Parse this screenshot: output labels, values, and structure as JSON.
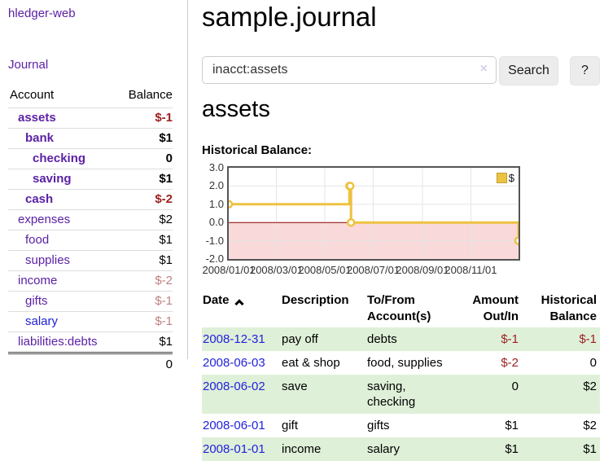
{
  "colors": {
    "link_purple": "#5c21a5",
    "link_blue": "#2121dd",
    "negative": "#9e1f1f",
    "negative_muted": "#c08181",
    "row_stripe_green": "#dff0d8",
    "chart_series_gold": "#edc240",
    "chart_negative_region": "#f9d9d9",
    "chart_zero_line": "#8b0000",
    "chart_grid": "#e6e6e6",
    "chart_border": "#545454"
  },
  "app": {
    "brand": "hledger-web",
    "nav_journal": "Journal"
  },
  "sidebar": {
    "header": {
      "account": "Account",
      "balance": "Balance"
    },
    "accounts": [
      {
        "name": "assets",
        "depth": 0,
        "balance": "$-1",
        "bold": true
      },
      {
        "name": "bank",
        "depth": 1,
        "balance": "$1",
        "bold": true
      },
      {
        "name": "checking",
        "depth": 2,
        "balance": "0",
        "bold": true
      },
      {
        "name": "saving",
        "depth": 2,
        "balance": "$1",
        "bold": true
      },
      {
        "name": "cash",
        "depth": 1,
        "balance": "$-2",
        "bold": true
      },
      {
        "name": "expenses",
        "depth": 0,
        "balance": "$2",
        "bold": false
      },
      {
        "name": "food",
        "depth": 1,
        "balance": "$1",
        "bold": false
      },
      {
        "name": "supplies",
        "depth": 1,
        "balance": "$1",
        "bold": false
      },
      {
        "name": "income",
        "depth": 0,
        "balance": "$-2",
        "bold": false
      },
      {
        "name": "gifts",
        "depth": 1,
        "balance": "$-1",
        "bold": false
      },
      {
        "name": "salary",
        "depth": 1,
        "balance": "$-1",
        "bold": false,
        "unvisited": true
      },
      {
        "name": "liabilities:debts",
        "depth": 0,
        "balance": "$1",
        "bold": false
      }
    ],
    "total": "0"
  },
  "main": {
    "title": "sample.journal",
    "search": {
      "value": "inacct:assets",
      "clear_icon": "×",
      "search_button": "Search",
      "help_button": "?"
    },
    "account_heading": "assets",
    "chart_title": "Historical Balance:"
  },
  "chart_data": {
    "type": "line",
    "step": true,
    "series": [
      {
        "name": "$",
        "color": "#edc240",
        "points": [
          [
            "2008-01-01",
            1
          ],
          [
            "2008-06-01",
            2
          ],
          [
            "2008-06-02",
            2
          ],
          [
            "2008-06-03",
            0
          ],
          [
            "2008-12-31",
            -1
          ]
        ]
      }
    ],
    "x_range": [
      "2008-01-01",
      "2008-12-31"
    ],
    "x_ticks": [
      "2008/01/01",
      "2008/03/01",
      "2008/05/01",
      "2008/07/01",
      "2008/09/01",
      "2008/11/01"
    ],
    "y_ticks": [
      3,
      2,
      1,
      0,
      -1,
      -2
    ],
    "ylim": [
      -2,
      3
    ],
    "grid": true,
    "legend_position": "top-right",
    "legend_entries": [
      "$"
    ],
    "negative_region_fill": "#f9d9d9",
    "zero_line_color": "#8b0000",
    "title": "",
    "xlabel": "",
    "ylabel": ""
  },
  "register": {
    "columns": [
      "Date",
      "Description",
      "To/From Account(s)",
      "Amount Out/In",
      "Historical Balance"
    ],
    "sort_column": "Date",
    "sort_direction": "ascending",
    "rows": [
      {
        "date": "2008-12-31",
        "description": "pay off",
        "accounts": "debts",
        "amount": "$-1",
        "balance": "$-1"
      },
      {
        "date": "2008-06-03",
        "description": "eat & shop",
        "accounts": "food, supplies",
        "amount": "$-2",
        "balance": "0"
      },
      {
        "date": "2008-06-02",
        "description": "save",
        "accounts": "saving,\nchecking",
        "amount": "0",
        "balance": "$2"
      },
      {
        "date": "2008-06-01",
        "description": "gift",
        "accounts": "gifts",
        "amount": "$1",
        "balance": "$2"
      },
      {
        "date": "2008-01-01",
        "description": "income",
        "accounts": "salary",
        "amount": "$1",
        "balance": "$1"
      }
    ]
  }
}
